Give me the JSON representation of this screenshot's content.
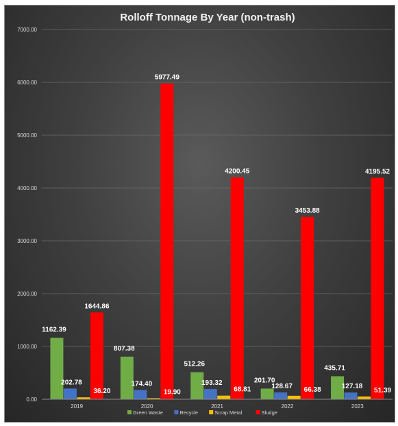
{
  "chart_data": {
    "type": "bar",
    "title": "Rolloff Tonnage By Year (non-trash)",
    "xlabel": "",
    "ylabel": "",
    "ylim": [
      0,
      7000
    ],
    "yticks": [
      "0.00",
      "1000.00",
      "2000.00",
      "3000.00",
      "4000.00",
      "5000.00",
      "6000.00",
      "7000.00"
    ],
    "grid": true,
    "legend_position": "bottom",
    "categories": [
      "2019",
      "2020",
      "2021",
      "2022",
      "2023"
    ],
    "series": [
      {
        "name": "Green Waste",
        "color": "#70ad47",
        "values": [
          1162.39,
          807.38,
          512.26,
          201.7,
          435.71
        ],
        "labels": [
          "1162.39",
          "807.38",
          "512.26",
          "201.70",
          "435.71"
        ]
      },
      {
        "name": "Recycle",
        "color": "#4472c4",
        "values": [
          202.78,
          174.4,
          193.32,
          128.67,
          127.18
        ],
        "labels": [
          "202.78",
          "174.40",
          "193.32",
          "128.67",
          "127.18"
        ]
      },
      {
        "name": "Scrap Metal",
        "color": "#ffc000",
        "values": [
          36.2,
          19.9,
          68.81,
          66.38,
          51.39
        ],
        "labels": [
          "36.20",
          "19.90",
          "68.81",
          "66.38",
          "51.39"
        ]
      },
      {
        "name": "Sludge",
        "color": "#ff0000",
        "values": [
          1644.86,
          5977.49,
          4200.45,
          3453.88,
          4195.52
        ],
        "labels": [
          "1644.86",
          "5977.49",
          "4200.45",
          "3453.88",
          "4195.52"
        ]
      }
    ]
  }
}
